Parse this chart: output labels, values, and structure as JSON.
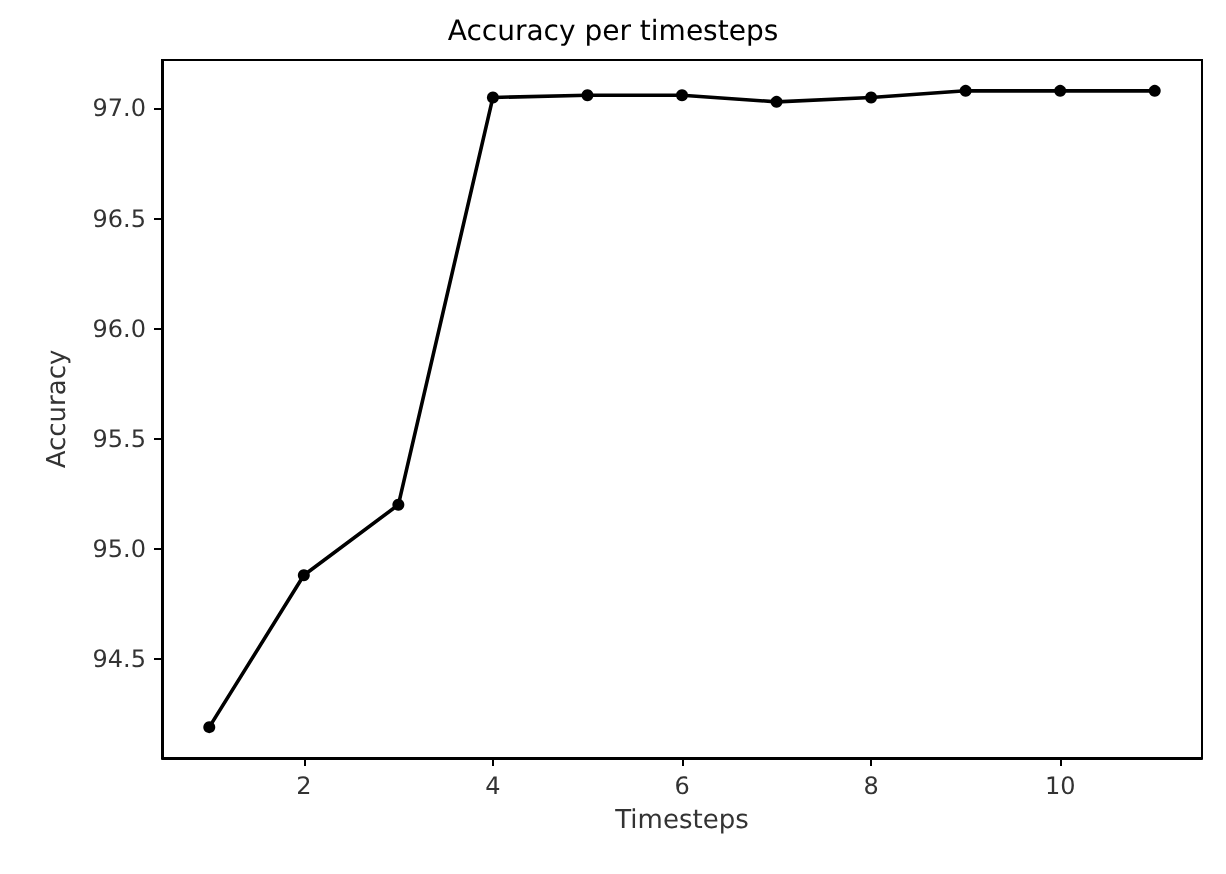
{
  "chart_data": {
    "type": "line",
    "title": "Accuracy per timesteps",
    "xlabel": "Timesteps",
    "ylabel": "Accuracy",
    "x": [
      1,
      2,
      3,
      4,
      5,
      6,
      7,
      8,
      9,
      10,
      11
    ],
    "series": [
      {
        "color": "#000000",
        "values": [
          94.19,
          94.88,
          95.2,
          97.05,
          97.06,
          97.06,
          97.03,
          97.05,
          97.08,
          97.08,
          97.08
        ]
      }
    ],
    "xlim": [
      0.5,
      11.5
    ],
    "xticks": [
      2,
      4,
      6,
      8,
      10
    ],
    "ylim": [
      94.05,
      97.22
    ],
    "yticks": [
      94.5,
      {
        "value": 95,
        "label": "95.0"
      },
      95.5,
      {
        "value": 96,
        "label": "96.0"
      },
      96.5,
      {
        "value": 97,
        "label": "97.0"
      }
    ],
    "marker": "circle",
    "line_style": "solid",
    "grid": false
  }
}
